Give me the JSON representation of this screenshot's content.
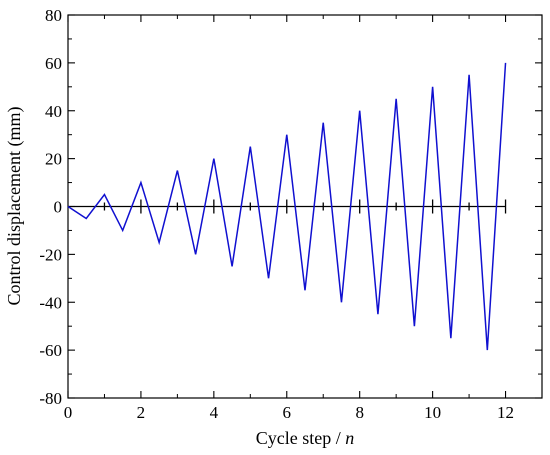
{
  "chart_data": {
    "type": "line",
    "xlabel": "Cycle step / ",
    "xlabel_var": "n",
    "ylabel": "Control displacement (mm)",
    "xlim": [
      0,
      13
    ],
    "ylim": [
      -80,
      80
    ],
    "x_ticks": [
      0,
      2,
      4,
      6,
      8,
      10,
      12
    ],
    "y_ticks": [
      -80,
      -60,
      -40,
      -20,
      0,
      20,
      40,
      60,
      80
    ],
    "zero_line_ticks": [
      1,
      2,
      3,
      4,
      5,
      6,
      7,
      8,
      9,
      10,
      11,
      12
    ],
    "line_color": "#1010d0",
    "grid": false,
    "series": [
      {
        "x": [
          0,
          0.5,
          1,
          1.5,
          2,
          2.5,
          3,
          3.5,
          4,
          4.5,
          5,
          5.5,
          6,
          6.5,
          7,
          7.5,
          8,
          8.5,
          9,
          9.5,
          10,
          10.5,
          11,
          11.5,
          12
        ],
        "y": [
          0,
          -5,
          5,
          -10,
          10,
          -15,
          15,
          -20,
          20,
          -25,
          25,
          -30,
          30,
          -35,
          35,
          -40,
          40,
          -45,
          45,
          -50,
          50,
          -55,
          55,
          -60,
          60
        ]
      }
    ]
  }
}
